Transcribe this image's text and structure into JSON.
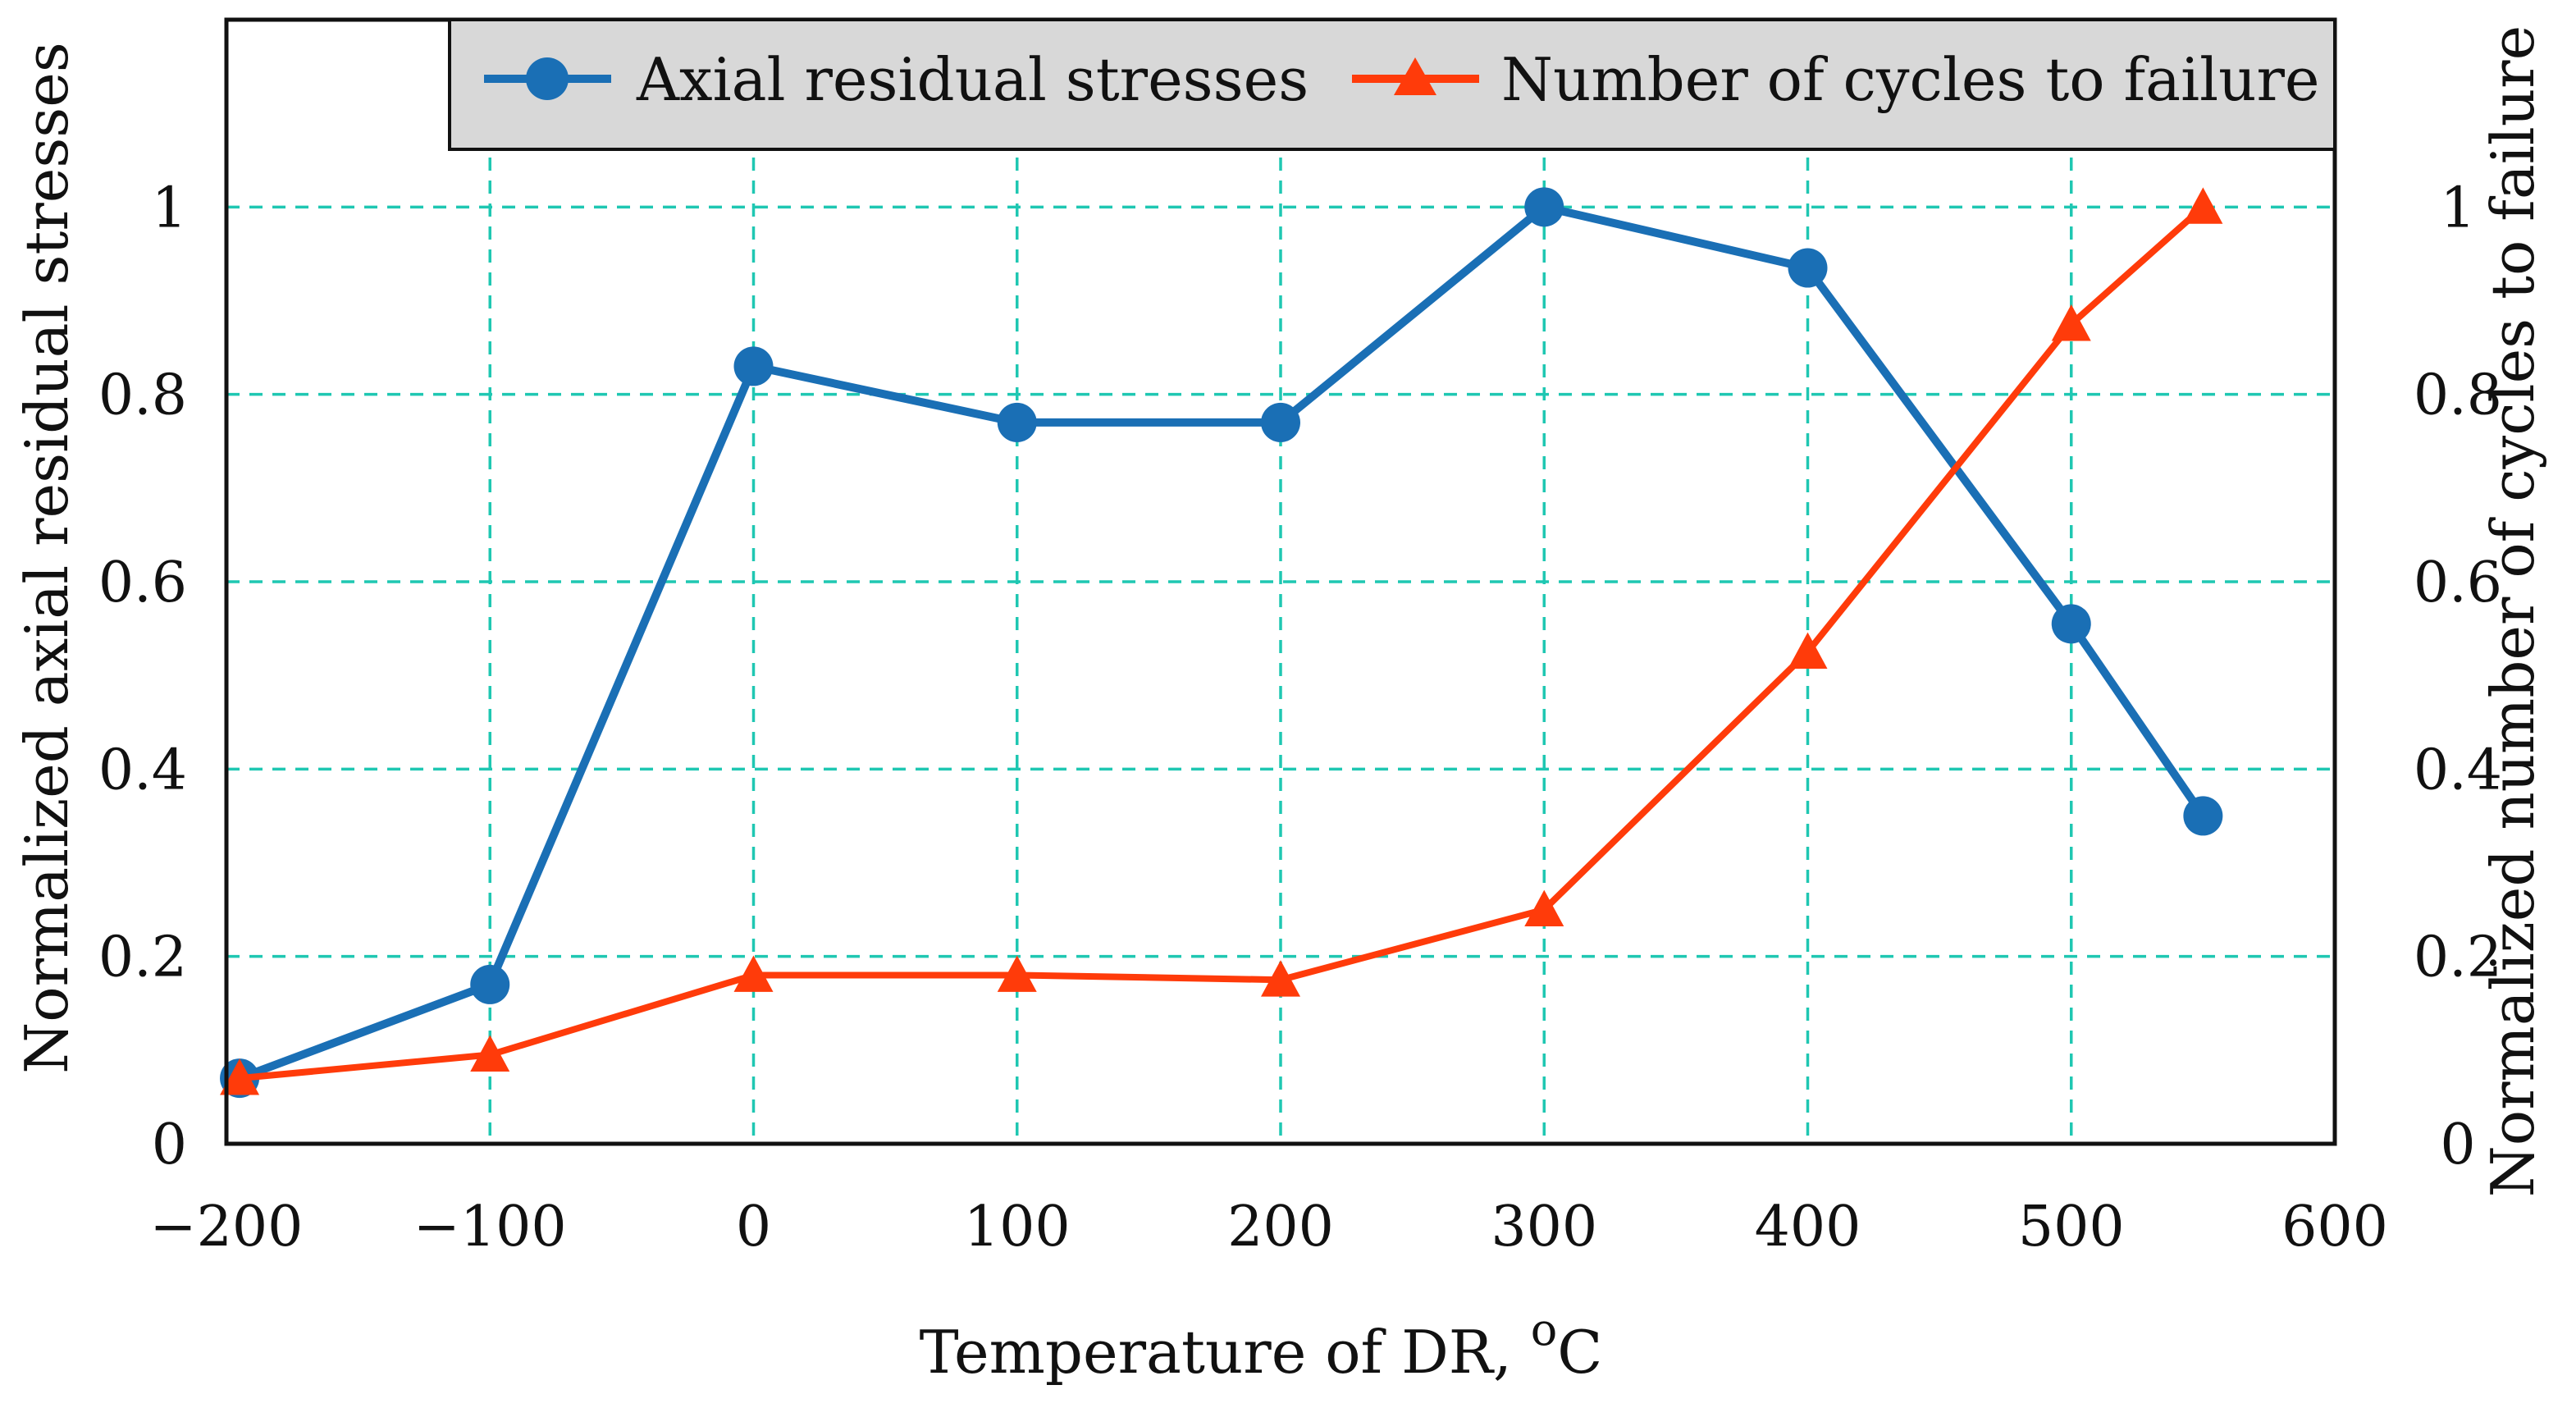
{
  "chart_data": {
    "type": "line",
    "title": "",
    "xlabel": "Temperature of DR, ",
    "xlabel_unit_sup": "o",
    "xlabel_unit": "C",
    "ylabel_left": "Normalized axial residual stresses",
    "ylabel_right": "Normalized number of cycles to failure",
    "xlim": [
      -200,
      600
    ],
    "ylim_left": [
      0,
      1.2
    ],
    "ylim_right": [
      0,
      1.2
    ],
    "x_ticks": [
      "−200",
      "−100",
      "0",
      "100",
      "200",
      "300",
      "400",
      "500",
      "600"
    ],
    "x_tick_values": [
      -200,
      -100,
      0,
      100,
      200,
      300,
      400,
      500,
      600
    ],
    "y_ticks_left": [
      "0",
      "0.2",
      "0.4",
      "0.6",
      "0.8",
      "1"
    ],
    "y_ticks_right": [
      "0",
      "0.2",
      "0.4",
      "0.6",
      "0.8",
      "1"
    ],
    "y_tick_values": [
      0,
      0.2,
      0.4,
      0.6,
      0.8,
      1.0
    ],
    "grid": true,
    "legend_position": "top",
    "series": [
      {
        "name": "Axial residual stresses",
        "color": "#1a6fb5",
        "marker": "circle",
        "axis": "left",
        "x": [
          -195,
          -100,
          0,
          100,
          200,
          300,
          400,
          500,
          550
        ],
        "values": [
          0.07,
          0.17,
          0.83,
          0.77,
          0.77,
          1.0,
          0.935,
          0.555,
          0.35
        ]
      },
      {
        "name": "Number of cycles to failure",
        "color": "#ff3b0a",
        "marker": "triangle",
        "axis": "right",
        "x": [
          -195,
          -100,
          0,
          100,
          200,
          300,
          400,
          500,
          550
        ],
        "values": [
          0.07,
          0.095,
          0.18,
          0.18,
          0.175,
          0.25,
          0.525,
          0.875,
          1.0
        ]
      }
    ]
  }
}
